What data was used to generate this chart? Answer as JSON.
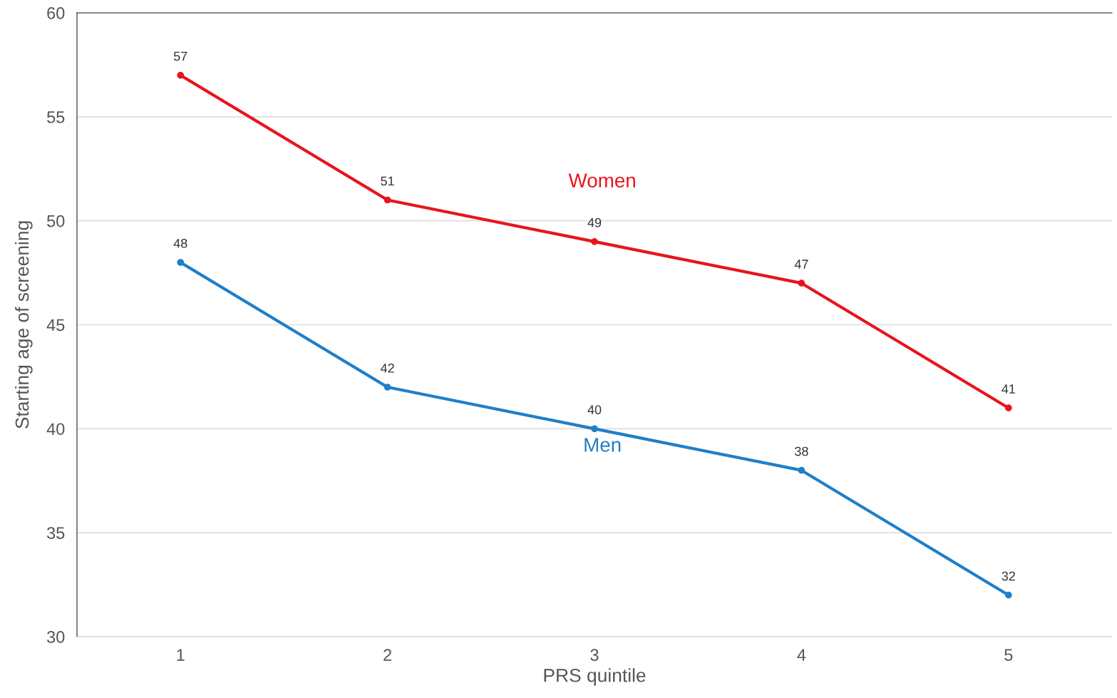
{
  "chart_data": {
    "type": "line",
    "xlabel": "PRS quintile",
    "ylabel": "Starting age of screening",
    "categories": [
      "1",
      "2",
      "3",
      "4",
      "5"
    ],
    "series": [
      {
        "name": "Women",
        "color": "#e8141c",
        "values": [
          57,
          51,
          49,
          47,
          41
        ]
      },
      {
        "name": "Men",
        "color": "#1f7fc8",
        "values": [
          48,
          42,
          40,
          38,
          32
        ]
      }
    ],
    "ylim": [
      30,
      60
    ],
    "yticks": [
      30,
      35,
      40,
      45,
      50,
      55,
      60
    ],
    "grid": "y",
    "data_labels": true,
    "marker": "circle",
    "line_style": "solid",
    "legend": false
  }
}
